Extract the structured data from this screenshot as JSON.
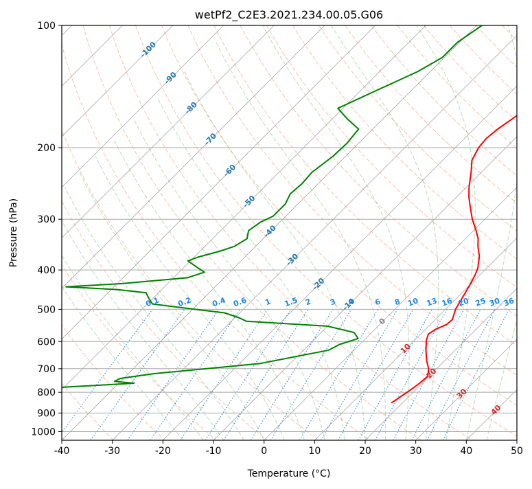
{
  "chart_data": {
    "type": "line",
    "subtype": "skew-t log-p",
    "title": "wetPf2_C2E3.2021.234.00.05.G06",
    "xlabel": "Temperature (°C)",
    "ylabel": "Pressure (hPa)",
    "xlim": [
      -40,
      50
    ],
    "ylim": [
      1050,
      100
    ],
    "y_scale": "log",
    "grid": true,
    "x_ticks": [
      "-40",
      "-30",
      "-20",
      "-10",
      "0",
      "10",
      "20",
      "30",
      "40",
      "50"
    ],
    "x_tick_values": [
      -40,
      -30,
      -20,
      -10,
      0,
      10,
      20,
      30,
      40,
      50
    ],
    "y_ticks": [
      "100",
      "200",
      "300",
      "400",
      "500",
      "600",
      "700",
      "800",
      "900",
      "1000"
    ],
    "y_tick_values": [
      100,
      200,
      300,
      400,
      500,
      600,
      700,
      800,
      900,
      1000
    ],
    "colors": {
      "temperature": "#ff0000",
      "dewpoint": "#008000",
      "dry_adiabat": "#ff7f50",
      "moist_adiabat": "#2ca02c",
      "mixing_ratio": "#1e88e5",
      "isotherm": "#808080",
      "lcl_label": "#d62728",
      "neg_label": "#1f77b4"
    },
    "isotherm_labels": [
      {
        "text": "-100",
        "temp": -100,
        "p": 115
      },
      {
        "text": "-90",
        "temp": -90,
        "p": 135
      },
      {
        "text": "-80",
        "temp": -80,
        "p": 160
      },
      {
        "text": "-70",
        "temp": -70,
        "p": 191
      },
      {
        "text": "-60",
        "temp": -60,
        "p": 228
      },
      {
        "text": "-50",
        "temp": -50,
        "p": 272
      },
      {
        "text": "-40",
        "temp": -40,
        "p": 322
      },
      {
        "text": "-30",
        "temp": -30,
        "p": 378
      },
      {
        "text": "-20",
        "temp": -20,
        "p": 434
      },
      {
        "text": "-10",
        "temp": -10,
        "p": 487
      },
      {
        "text": "0",
        "temp": 0,
        "p": 536
      },
      {
        "text": "10",
        "temp": 10,
        "p": 626
      },
      {
        "text": "20",
        "temp": 20,
        "p": 720
      },
      {
        "text": "30",
        "temp": 30,
        "p": 808
      },
      {
        "text": "40",
        "temp": 40,
        "p": 886
      }
    ],
    "mixing_ratio_labels": [
      "0.1",
      "0.2",
      "0.4",
      "0.6",
      "1",
      "1.5",
      "2",
      "3",
      "4",
      "6",
      "8",
      "10",
      "13",
      "16",
      "20",
      "25",
      "30",
      "36"
    ],
    "series": [
      {
        "name": "",
        "role": "temperature",
        "points": [
          [
            -10.7,
            100
          ],
          [
            -12.0,
            110
          ],
          [
            -12.2,
            120
          ],
          [
            -11.6,
            130
          ],
          [
            -11.5,
            140
          ],
          [
            -12.5,
            150
          ],
          [
            -14.0,
            165
          ],
          [
            -15.3,
            180
          ],
          [
            -15.7,
            190
          ],
          [
            -15.4,
            200
          ],
          [
            -14.2,
            215
          ],
          [
            -12.0,
            230
          ],
          [
            -9.5,
            250
          ],
          [
            -7.5,
            265
          ],
          [
            -5.3,
            280
          ],
          [
            -2.5,
            300
          ],
          [
            0.5,
            320
          ],
          [
            2.5,
            335
          ],
          [
            4.0,
            350
          ],
          [
            6.2,
            370
          ],
          [
            8.2,
            395
          ],
          [
            9.0,
            410
          ],
          [
            9.8,
            430
          ],
          [
            10.8,
            460
          ],
          [
            12.0,
            500
          ],
          [
            13.4,
            530
          ],
          [
            13.2,
            545
          ],
          [
            12.0,
            560
          ],
          [
            11.5,
            575
          ],
          [
            12.3,
            595
          ],
          [
            14.2,
            630
          ],
          [
            16.5,
            670
          ],
          [
            18.4,
            700
          ],
          [
            19.7,
            730
          ],
          [
            19.5,
            760
          ],
          [
            19.0,
            790
          ],
          [
            18.4,
            820
          ],
          [
            17.8,
            850
          ]
        ]
      },
      {
        "name": "",
        "role": "dewpoint",
        "points": [
          [
            -38.9,
            100
          ],
          [
            -40.4,
            110
          ],
          [
            -40.4,
            120
          ],
          [
            -42.5,
            130
          ],
          [
            -47.0,
            145
          ],
          [
            -51.0,
            160
          ],
          [
            -47.0,
            170
          ],
          [
            -42.8,
            180
          ],
          [
            -42.3,
            195
          ],
          [
            -42.5,
            210
          ],
          [
            -43.5,
            230
          ],
          [
            -43.2,
            245
          ],
          [
            -43.5,
            260
          ],
          [
            -42.5,
            275
          ],
          [
            -42.5,
            295
          ],
          [
            -43.8,
            305
          ],
          [
            -44.5,
            320
          ],
          [
            -43.2,
            335
          ],
          [
            -44.2,
            350
          ],
          [
            -46.2,
            360
          ],
          [
            -49.3,
            372
          ],
          [
            -50.5,
            380
          ],
          [
            -47.2,
            395
          ],
          [
            -45.0,
            405
          ],
          [
            -47.3,
            418
          ],
          [
            -59.0,
            432
          ],
          [
            -69.5,
            440
          ],
          [
            -58.8,
            447
          ],
          [
            -52.5,
            455
          ],
          [
            -50.8,
            470
          ],
          [
            -49.0,
            485
          ],
          [
            -39.5,
            500
          ],
          [
            -33.0,
            510
          ],
          [
            -29.0,
            525
          ],
          [
            -27.0,
            535
          ],
          [
            -10.0,
            550
          ],
          [
            -3.5,
            570
          ],
          [
            -1.5,
            590
          ],
          [
            -4.0,
            610
          ],
          [
            -5.0,
            630
          ],
          [
            -16.0,
            680
          ],
          [
            -35.0,
            720
          ],
          [
            -40.7,
            740
          ],
          [
            -41.2,
            752
          ],
          [
            -37.0,
            760
          ],
          [
            -52.0,
            780
          ],
          [
            -70.0,
            795
          ],
          [
            -53.0,
            810
          ],
          [
            -50.5,
            825
          ],
          [
            -50.3,
            833
          ],
          [
            -53.0,
            840
          ],
          [
            -55.3,
            850
          ]
        ]
      }
    ]
  }
}
